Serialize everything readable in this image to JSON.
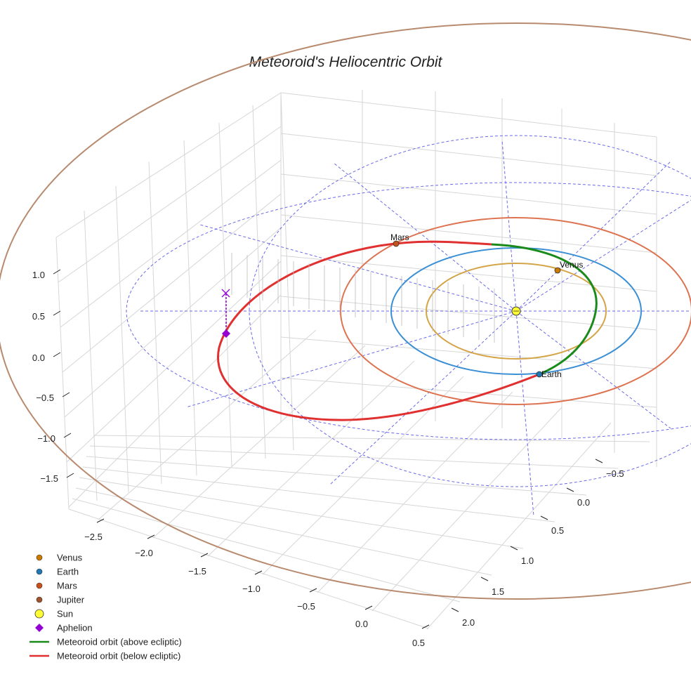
{
  "chart_data": {
    "type": "line",
    "title": "Meteoroid's Heliocentric Orbit",
    "projection": "3d",
    "axes": {
      "x": {
        "ticks": [
          "−2.5",
          "−2.0",
          "−1.5",
          "−1.0",
          "−0.5",
          "0.0",
          "0.5"
        ]
      },
      "y": {
        "ticks": [
          "−0.5",
          "0.0",
          "0.5",
          "1.0",
          "1.5",
          "2.0"
        ]
      },
      "z": {
        "ticks": [
          "1.0",
          "0.5",
          "0.0",
          "−0.5",
          "−1.0",
          "−1.5"
        ]
      }
    },
    "planets": [
      {
        "name": "Venus",
        "label": "Venus",
        "orbit_radius_au": 0.72,
        "color": "#cc7a00",
        "orbit_color": "#d4a548"
      },
      {
        "name": "Earth",
        "label": "Earth",
        "orbit_radius_au": 1.0,
        "color": "#1f77b4",
        "orbit_color": "#3b8fd4"
      },
      {
        "name": "Mars",
        "label": "Mars",
        "orbit_radius_au": 1.52,
        "color": "#c8501a",
        "orbit_color": "#dd7350"
      },
      {
        "name": "Jupiter",
        "label": "",
        "orbit_radius_au": 5.2,
        "color": "#a0522d",
        "orbit_color": "#b88a6e"
      }
    ],
    "sun": {
      "name": "Sun",
      "color": "#ffff33"
    },
    "aphelion": {
      "name": "Aphelion",
      "color": "#9400d3"
    },
    "meteoroid_orbit": {
      "above_ecliptic": {
        "name": "Meteoroid orbit (above ecliptic)",
        "color": "#1a8a1a"
      },
      "below_ecliptic": {
        "name": "Meteoroid orbit (below ecliptic)",
        "color": "#e03030"
      }
    },
    "legend": {
      "placement": "bottom-left",
      "entries": [
        {
          "label": "Venus",
          "marker": "circle",
          "color": "#cc7a00"
        },
        {
          "label": "Earth",
          "marker": "circle",
          "color": "#1f77b4"
        },
        {
          "label": "Mars",
          "marker": "circle",
          "color": "#c8501a"
        },
        {
          "label": "Jupiter",
          "marker": "circle",
          "color": "#a0522d"
        },
        {
          "label": "Sun",
          "marker": "circle-large",
          "color": "#ffff33"
        },
        {
          "label": "Aphelion",
          "marker": "diamond",
          "color": "#9400d3"
        },
        {
          "label": "Meteoroid orbit (above ecliptic)",
          "marker": "line",
          "color": "#1a8a1a"
        },
        {
          "label": "Meteoroid orbit (below ecliptic)",
          "marker": "line",
          "color": "#e03030"
        }
      ]
    }
  }
}
